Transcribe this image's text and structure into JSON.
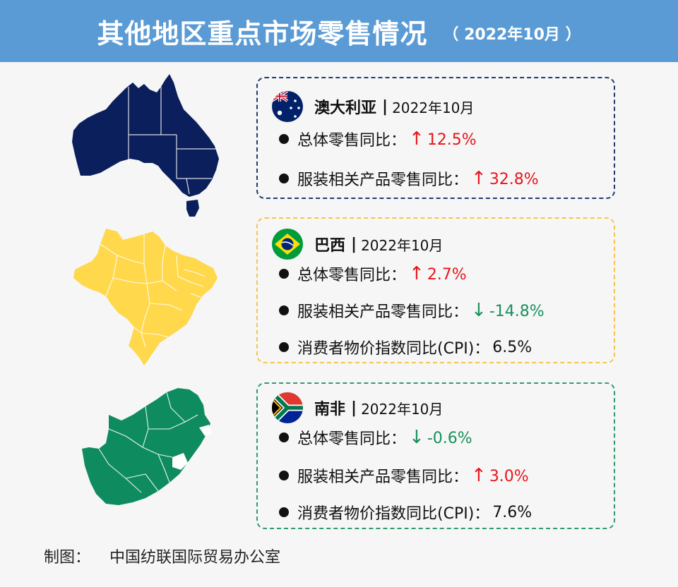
{
  "header": {
    "title": "其他地区重点市场零售情况",
    "date": "（ 2022年10月 ）"
  },
  "separator": "|",
  "bullet_char": "•",
  "colors": {
    "header_bg": "#5b9bd5",
    "up": "#e8151b",
    "down": "#17925a",
    "australia_map": "#0b1f5c",
    "brazil_map": "#ffd84c",
    "south_africa_map": "#0f8c5f"
  },
  "markets": [
    {
      "country": "澳大利亚",
      "period": "2022年10月",
      "flag_icon": "australia-flag-icon",
      "rows": [
        {
          "label": "总体零售同比：",
          "arrow": "↑",
          "value": "12.5%",
          "trend": "up"
        },
        {
          "label": "服装相关产品零售同比：",
          "arrow": "↑",
          "value": "32.8%",
          "trend": "up"
        }
      ]
    },
    {
      "country": "巴西",
      "period": "2022年10月",
      "flag_icon": "brazil-flag-icon",
      "rows": [
        {
          "label": "总体零售同比：",
          "arrow": "↑",
          "value": "2.7%",
          "trend": "up"
        },
        {
          "label": "服装相关产品零售同比：",
          "arrow": "↓",
          "value": "-14.8%",
          "trend": "down"
        },
        {
          "label": "消费者物价指数同比(CPI)：",
          "arrow": "",
          "value": "6.5%",
          "trend": "neutral"
        }
      ]
    },
    {
      "country": "南非",
      "period": "2022年10月",
      "flag_icon": "south-africa-flag-icon",
      "rows": [
        {
          "label": "总体零售同比：",
          "arrow": "↓",
          "value": "-0.6%",
          "trend": "down"
        },
        {
          "label": "服装相关产品零售同比：",
          "arrow": "↑",
          "value": "3.0%",
          "trend": "up"
        },
        {
          "label": "消费者物价指数同比(CPI)：",
          "arrow": "",
          "value": "7.6%",
          "trend": "neutral"
        }
      ]
    }
  ],
  "footer": {
    "label": "制图：",
    "source": "中国纺联国际贸易办公室"
  }
}
